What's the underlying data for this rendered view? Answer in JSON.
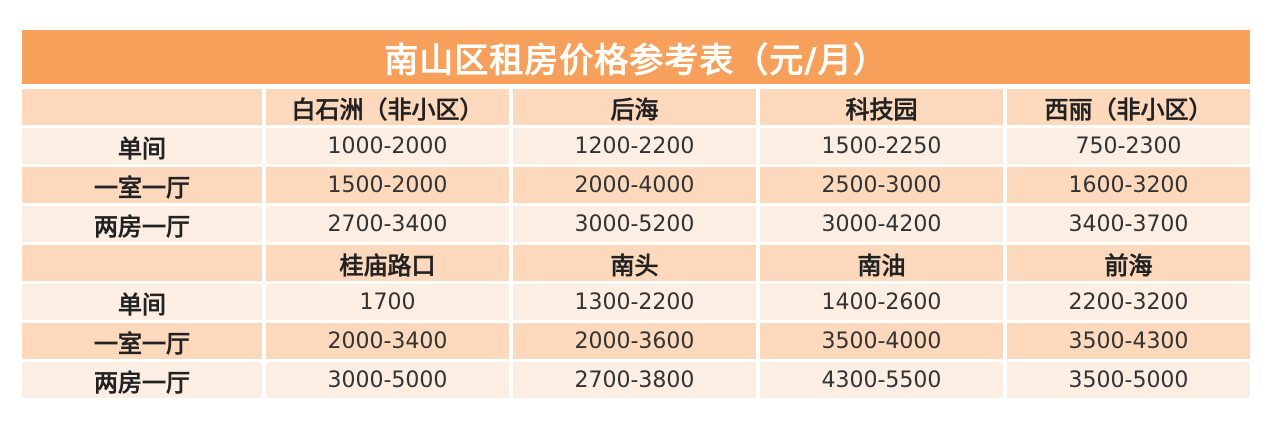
{
  "title": "南山区租房价格参考表（元/月）",
  "sections": [
    {
      "areas": [
        "白石洲（非小区）",
        "后海",
        "科技园",
        "西丽（非小区）"
      ],
      "rows": [
        {
          "label": "单间",
          "values": [
            "1000-2000",
            "1200-2200",
            "1500-2250",
            "750-2300"
          ]
        },
        {
          "label": "一室一厅",
          "values": [
            "1500-2000",
            "2000-4000",
            "2500-3000",
            "1600-3200"
          ]
        },
        {
          "label": "两房一厅",
          "values": [
            "2700-3400",
            "3000-5200",
            "3000-4200",
            "3400-3700"
          ]
        }
      ]
    },
    {
      "areas": [
        "桂庙路口",
        "南头",
        "南油",
        "前海"
      ],
      "rows": [
        {
          "label": "单间",
          "values": [
            "1700",
            "1300-2200",
            "1400-2600",
            "2200-3200"
          ]
        },
        {
          "label": "一室一厅",
          "values": [
            "2000-3400",
            "2000-3600",
            "3500-4000",
            "3500-4300"
          ]
        },
        {
          "label": "两房一厅",
          "values": [
            "3000-5000",
            "2700-3800",
            "4300-5500",
            "3500-5000"
          ]
        }
      ]
    }
  ],
  "colors": {
    "title_bg": "#f6a05b",
    "header_bg": "#fcd9bd",
    "row_light": "#fdeee3",
    "row_dark": "#fcd9bd"
  }
}
